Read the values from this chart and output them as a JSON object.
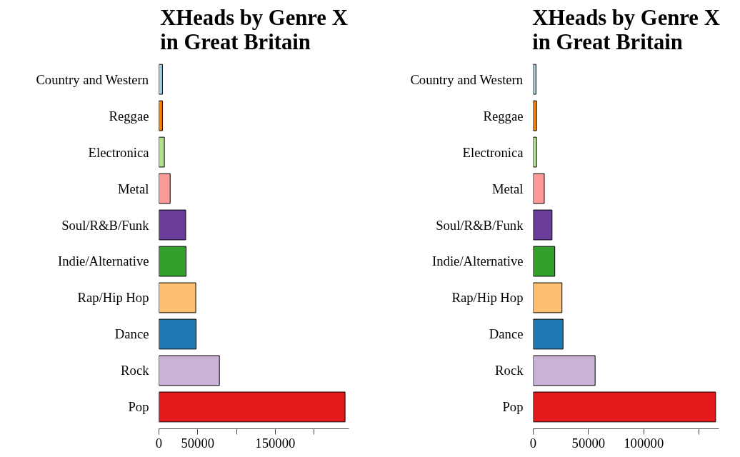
{
  "chart_data": [
    {
      "type": "bar",
      "orientation": "horizontal",
      "title": "XHeads by Genre X\nin Great Britain",
      "categories": [
        "Country and Western",
        "Reggae",
        "Electronica",
        "Metal",
        "Soul/R&B/Funk",
        "Indie/Alternative",
        "Rap/Hip Hop",
        "Dance",
        "Rock",
        "Pop"
      ],
      "values": [
        4500,
        4500,
        7000,
        14500,
        34500,
        35000,
        47500,
        48000,
        78000,
        240000
      ],
      "colors": [
        "#a6cee3",
        "#ff7f00",
        "#b2df8a",
        "#fb9a99",
        "#6a3d9a",
        "#33a02c",
        "#fdbf6f",
        "#1f78b4",
        "#cab2d6",
        "#e31a1c"
      ],
      "xlim": [
        0,
        245000
      ],
      "xticks": [
        0,
        50000,
        {
          "value": 100000,
          "label": null
        },
        150000,
        {
          "value": 200000,
          "label": null
        }
      ],
      "grid": false
    },
    {
      "type": "bar",
      "orientation": "horizontal",
      "title": "XHeads by Genre X\nin Great Britain",
      "categories": [
        "Country and Western",
        "Reggae",
        "Electronica",
        "Metal",
        "Soul/R&B/Funk",
        "Indie/Alternative",
        "Rap/Hip Hop",
        "Dance",
        "Rock",
        "Pop"
      ],
      "values": [
        2500,
        3000,
        3000,
        10000,
        17000,
        19500,
        26000,
        27000,
        56000,
        165000
      ],
      "colors": [
        "#a6cee3",
        "#ff7f00",
        "#b2df8a",
        "#fb9a99",
        "#6a3d9a",
        "#33a02c",
        "#fdbf6f",
        "#1f78b4",
        "#cab2d6",
        "#e31a1c"
      ],
      "xlim": [
        0,
        168000
      ],
      "xticks": [
        0,
        50000,
        100000,
        {
          "value": 150000,
          "label": null
        }
      ],
      "grid": false
    }
  ]
}
